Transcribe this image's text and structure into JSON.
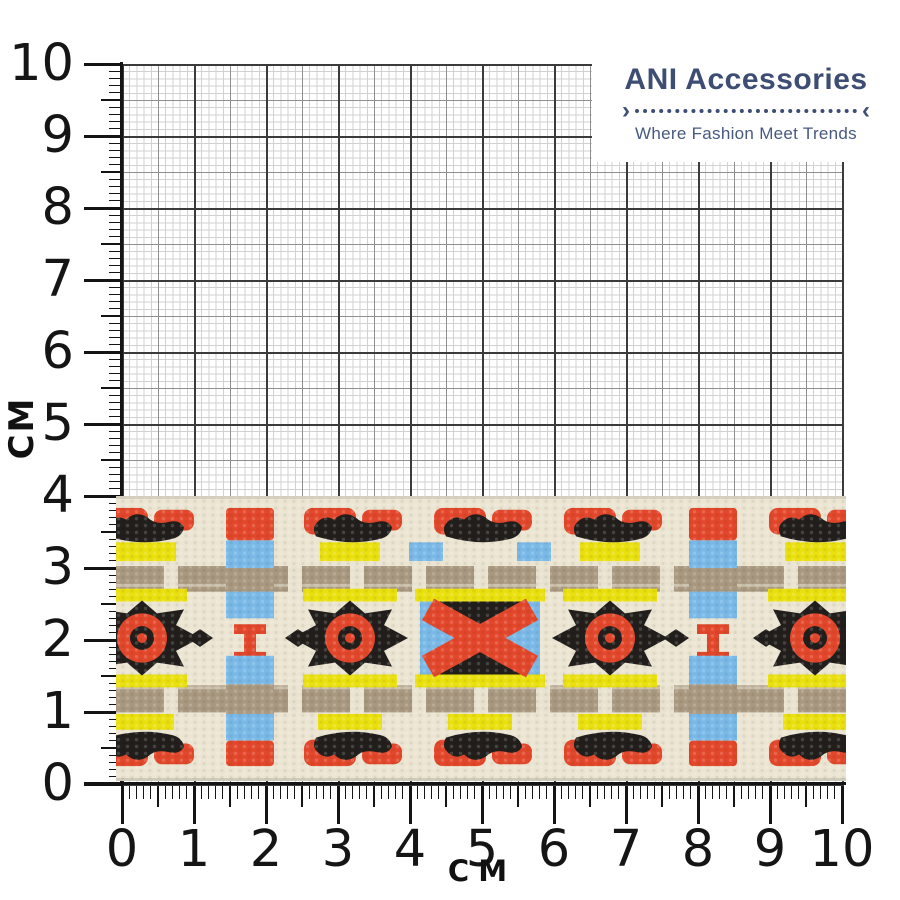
{
  "brand": {
    "name": "ANI Accessories",
    "tagline": "Where Fashion Meet Trends",
    "divider_left": "›",
    "divider_right": "‹"
  },
  "ruler": {
    "x_unit_label": "CM",
    "y_unit_label": "CM",
    "x_tick_labels": [
      "0",
      "1",
      "2",
      "3",
      "4",
      "5",
      "6",
      "7",
      "8",
      "9",
      "10"
    ],
    "y_tick_labels": [
      "10",
      "9",
      "8",
      "7",
      "6",
      "5",
      "4",
      "3",
      "2",
      "1",
      "0"
    ]
  },
  "colors": {
    "brand_navy": "#3e4d74",
    "brand_tagline": "#47597f",
    "tick_black": "#141414",
    "grid_minor": "#d2d2d2",
    "grid_half": "#8f8f8f",
    "grid_major": "#3b3b3b",
    "ribbon_cream": "#ebe5d2",
    "ribbon_red": "#e2472b",
    "ribbon_black": "#211e1b",
    "ribbon_yellow": "#e9e00e",
    "ribbon_blue": "#7ab9e7",
    "ribbon_taupe": "#a99880"
  }
}
